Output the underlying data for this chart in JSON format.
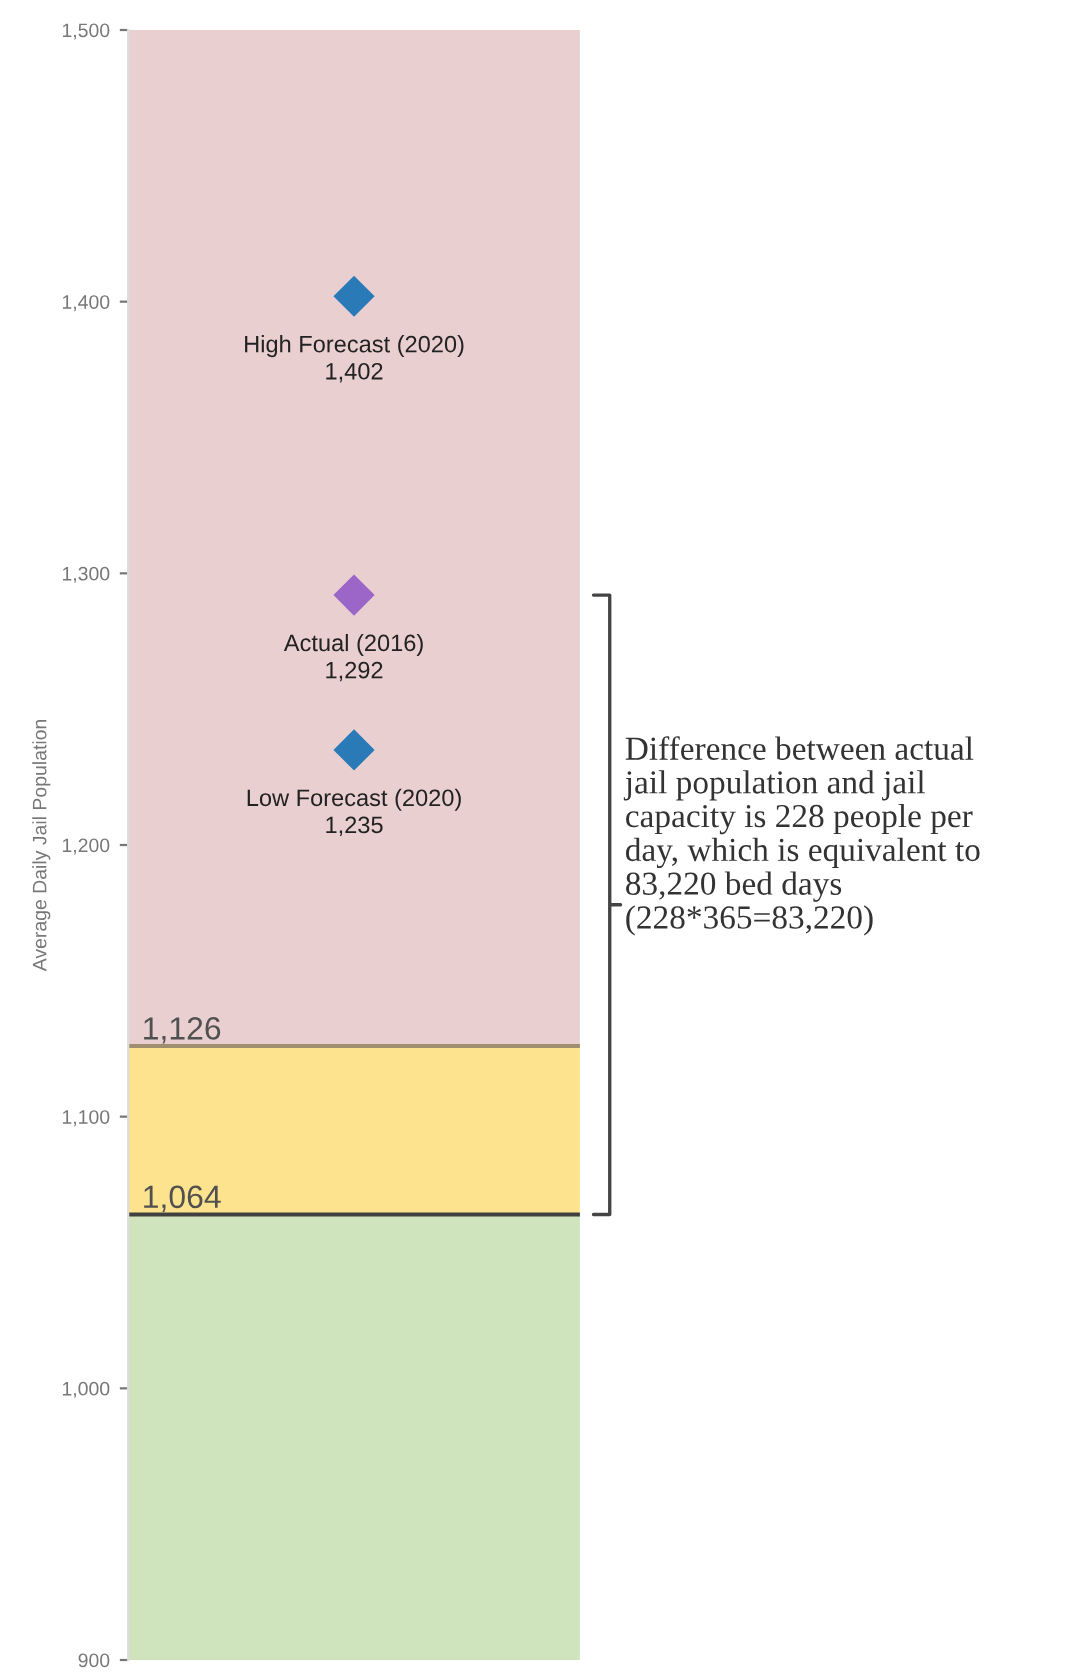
{
  "chart_data": {
    "type": "scatter",
    "ylabel": "Average Daily Jail Population",
    "categories": [
      null
    ],
    "series": [
      {
        "name": "High Forecast (2020)",
        "color": "#2a7ab8",
        "values": [
          1402
        ],
        "value_labels": [
          "1,402"
        ]
      },
      {
        "name": "Actual (2016)",
        "color": "#9b66c8",
        "values": [
          1292
        ],
        "value_labels": [
          "1,292"
        ]
      },
      {
        "name": "Low Forecast (2020)",
        "color": "#2a7ab8",
        "values": [
          1235
        ],
        "value_labels": [
          "1,235"
        ]
      }
    ],
    "marker": "diamond",
    "ylim": [
      900,
      1500
    ],
    "yticks": [
      {
        "value": 900,
        "label": "900"
      },
      {
        "value": 1000,
        "label": "1,000"
      },
      {
        "value": 1100,
        "label": "1,100"
      },
      {
        "value": 1200,
        "label": "1,200"
      },
      {
        "value": 1300,
        "label": "1,300"
      },
      {
        "value": 1400,
        "label": "1,400"
      },
      {
        "value": 1500,
        "label": "1,500"
      }
    ],
    "bands": [
      {
        "axis": "y",
        "from": 900,
        "to": 1064,
        "color": "#cfe3bd"
      },
      {
        "axis": "y",
        "from": 1064,
        "to": 1126,
        "color": "#fde38d"
      },
      {
        "axis": "y",
        "from": 1126,
        "to": 1500,
        "color": "#e9cfd0"
      }
    ],
    "ref_lines": [
      {
        "axis": "y",
        "value": 1126,
        "label": "1,126",
        "color": "#a08f6e"
      },
      {
        "axis": "y",
        "value": 1064,
        "label": "1,064",
        "color": "#404040"
      }
    ],
    "tick_labels": "y",
    "grid": false,
    "legend": false,
    "annotations": [
      "Difference between actual jail population and jail capacity is 228 people per day, which is equivalent to 83,220 bed days (228*365=83,220)"
    ]
  }
}
